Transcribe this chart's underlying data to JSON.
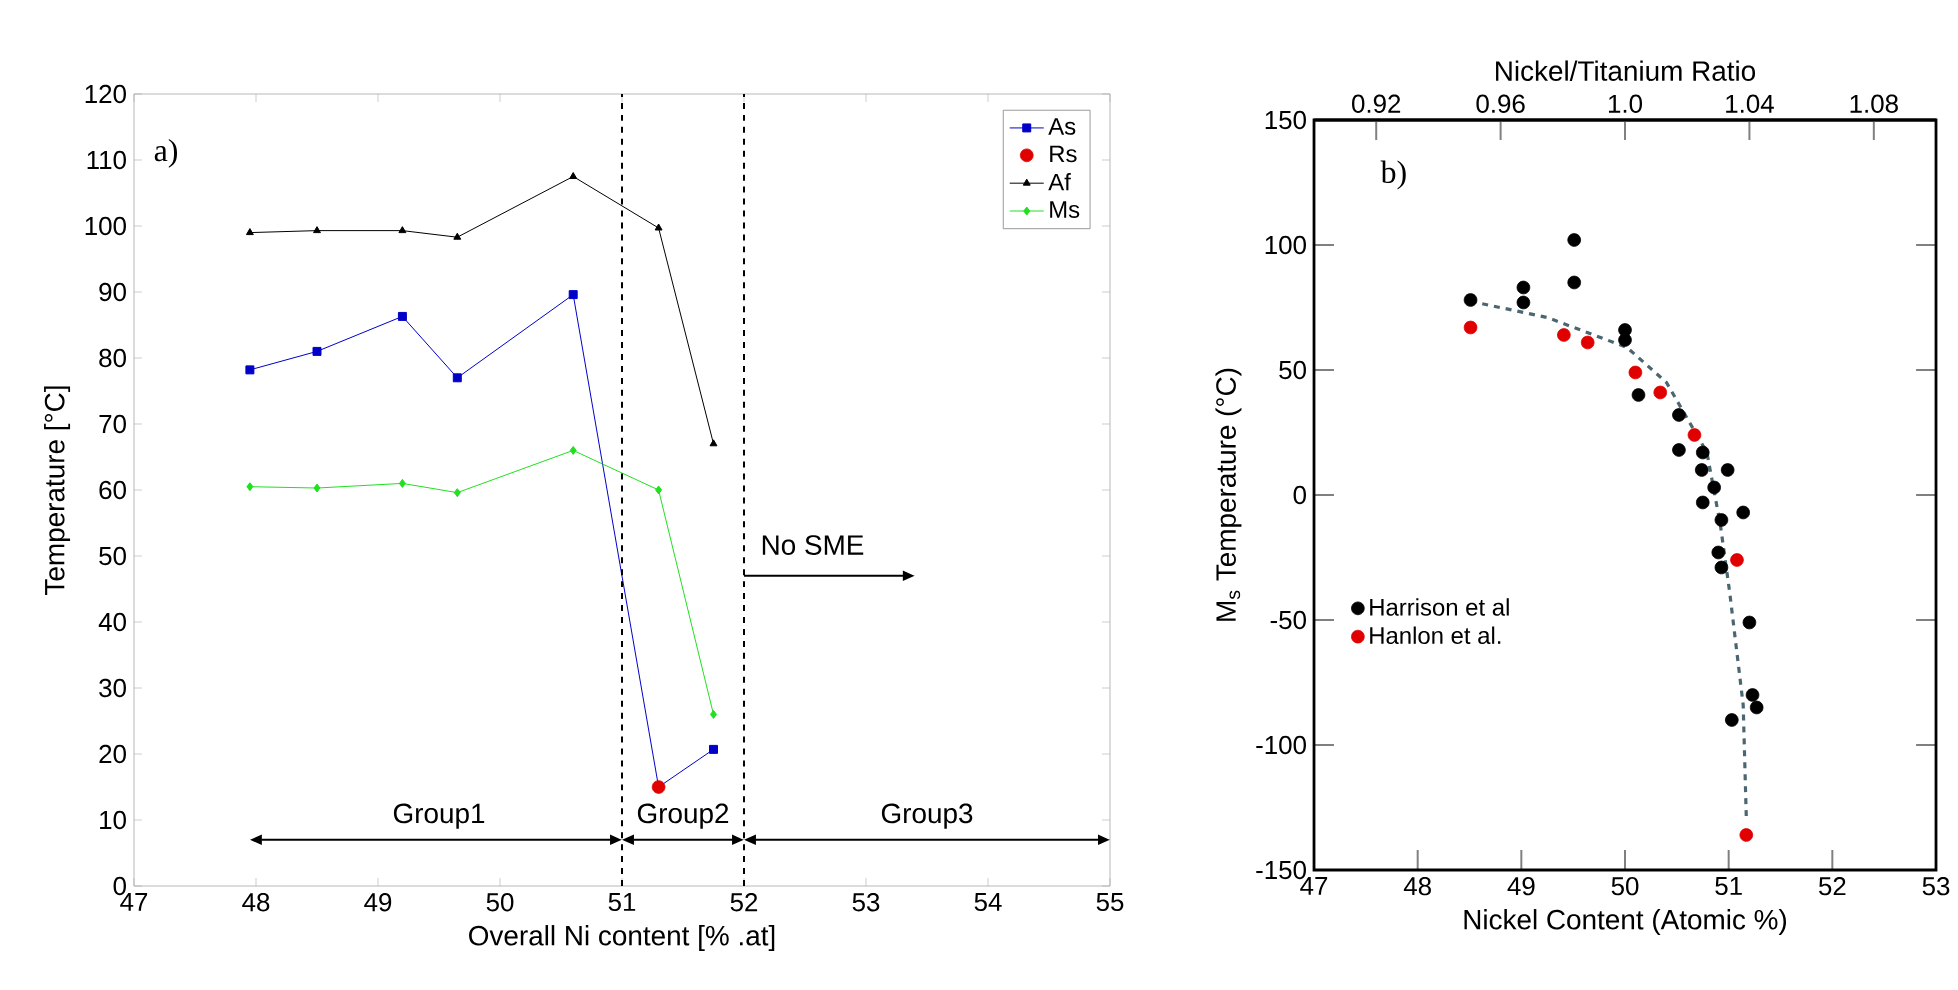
{
  "chart_data": [
    {
      "type": "line",
      "xlabel": "Overall Ni content [% .at]",
      "ylabel": "Temperature [°C]",
      "x": [
        47.95,
        48.5,
        49.2,
        49.65,
        50.6,
        51.3,
        51.75
      ],
      "series": [
        {
          "name": "As",
          "color": "#0000c8",
          "marker": "square",
          "values": [
            78.2,
            81,
            86.3,
            77,
            89.6,
            15,
            20.7
          ]
        },
        {
          "name": "Rs",
          "type": "scatter",
          "color": "#e00000",
          "marker": "circle",
          "x": [
            51.3
          ],
          "values": [
            15
          ]
        },
        {
          "name": "Af",
          "color": "#000000",
          "marker": "triangle",
          "values": [
            99,
            99.3,
            99.3,
            98.3,
            107.5,
            99.7,
            67
          ]
        },
        {
          "name": "Ms",
          "color": "#20e020",
          "marker": "diamond",
          "values": [
            60.5,
            60.3,
            61,
            59.6,
            66,
            60,
            26
          ]
        }
      ],
      "xlim": [
        47,
        55
      ],
      "ylim": [
        0,
        120
      ],
      "xticks": [
        47,
        48,
        49,
        50,
        51,
        52,
        53,
        54,
        55
      ],
      "yticks": [
        0,
        10,
        20,
        30,
        40,
        50,
        60,
        70,
        80,
        90,
        100,
        110,
        120
      ],
      "ref_lines": [
        {
          "axis": "x",
          "value": 51,
          "line_style": "dashed",
          "color": "#000000"
        },
        {
          "axis": "x",
          "value": 52,
          "line_style": "dashed",
          "color": "#000000"
        }
      ],
      "annotations": [
        "a)",
        "No SME",
        "Group1",
        "Group2",
        "Group3"
      ],
      "legend": "top right",
      "grid": false
    },
    {
      "type": "scatter",
      "xlabel": "Nickel Content (Atomic %)",
      "ylabel": "M$_{s}$ Temperature (°C)",
      "x2label": "Nickel/Titanium Ratio",
      "series": [
        {
          "name": "Harrison et al",
          "color": "#000000",
          "marker": "circle",
          "x": [
            48.51,
            49.02,
            49.02,
            49.51,
            49.51,
            50.0,
            50.0,
            50.13,
            50.52,
            50.52,
            50.75,
            50.74,
            50.86,
            50.75,
            50.99,
            50.93,
            51.14,
            50.9,
            50.93,
            51.2,
            51.23,
            51.27,
            51.03
          ],
          "values": [
            78,
            83,
            77,
            102,
            85,
            66,
            62,
            40,
            32,
            18,
            17,
            10,
            3,
            -3,
            10,
            -10,
            -7,
            -23,
            -29,
            -51,
            -80,
            -85,
            -90
          ]
        },
        {
          "name": "Hanlon et al.",
          "color": "#e00000",
          "marker": "circle",
          "x": [
            48.51,
            49.41,
            49.64,
            50.1,
            50.34,
            50.67,
            51.08,
            51.17
          ],
          "values": [
            67,
            64,
            61,
            49,
            41,
            24,
            -26,
            -136
          ]
        },
        {
          "type": "line",
          "color": "#4a6670",
          "marker": "none",
          "line_style": "dashed",
          "x": [
            48.51,
            49.25,
            50.02,
            50.4,
            50.79,
            50.92,
            51.01,
            51.14,
            51.17
          ],
          "values": [
            77.5,
            71,
            59,
            45,
            17,
            -12,
            -39,
            -84,
            -129
          ]
        }
      ],
      "xlim": [
        47,
        53
      ],
      "ylim": [
        -150,
        150
      ],
      "x2lim": [
        0.9,
        1.1
      ],
      "xticks": [
        47,
        48,
        49,
        50,
        51,
        52,
        53
      ],
      "yticks": [
        -150,
        -100,
        -50,
        0,
        50,
        100,
        150
      ],
      "x2ticks": [
        0.92,
        0.96,
        {
          "value": 1.0,
          "label": "1.0"
        },
        1.04,
        1.08
      ],
      "annotations": [
        "b)"
      ],
      "legend": "left",
      "grid": false
    }
  ]
}
